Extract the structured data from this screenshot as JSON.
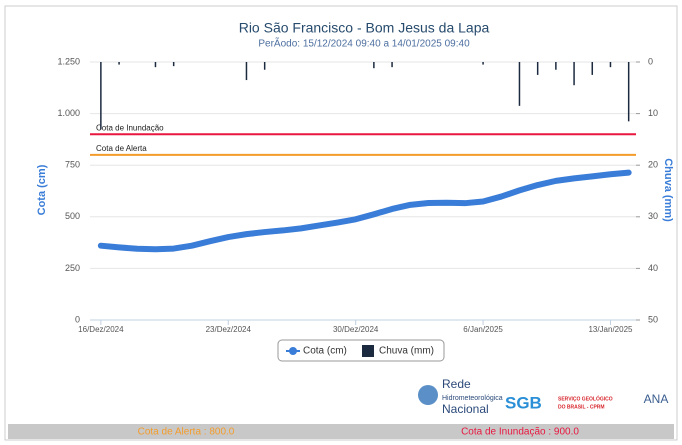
{
  "chart_data": {
    "type": "line",
    "title": "Rio São Francisco - Bom Jesus da Lapa",
    "subtitle": "PerÃodo: 15/12/2024 09:40 a 14/01/2025 09:40",
    "y_label": "Cota (cm)",
    "y2_label": "Chuva (mm)",
    "xlim": [
      "2024-12-15 09:40",
      "2025-01-14 09:40"
    ],
    "xticks": [
      {
        "value": "2024-12-16",
        "label": "16/Dez/2024"
      },
      {
        "value": "2024-12-23",
        "label": "23/Dez/2024"
      },
      {
        "value": "2024-12-30",
        "label": "30/Dez/2024"
      },
      {
        "value": "2025-01-06",
        "label": "6/Jan/2025"
      },
      {
        "value": "2025-01-13",
        "label": "13/Jan/2025"
      }
    ],
    "ylim": [
      0,
      1250
    ],
    "yticks": [
      0,
      250,
      500,
      750,
      {
        "value": 1000,
        "label": "1.000"
      },
      {
        "value": 1250,
        "label": "1.250"
      }
    ],
    "y2lim": [
      50,
      0
    ],
    "y2ticks": [
      0,
      10,
      20,
      30,
      40,
      50
    ],
    "grid": true,
    "series": [
      {
        "name": "Cota (cm)",
        "type": "line",
        "color": "#3a7dd8",
        "x": [
          "2024-12-16",
          "2024-12-17",
          "2024-12-18",
          "2024-12-19",
          "2024-12-20",
          "2024-12-21",
          "2024-12-22",
          "2024-12-23",
          "2024-12-24",
          "2024-12-25",
          "2024-12-26",
          "2024-12-27",
          "2024-12-28",
          "2024-12-29",
          "2024-12-30",
          "2024-12-31",
          "2025-01-01",
          "2025-01-02",
          "2025-01-03",
          "2025-01-04",
          "2025-01-05",
          "2025-01-06",
          "2025-01-07",
          "2025-01-08",
          "2025-01-09",
          "2025-01-10",
          "2025-01-11",
          "2025-01-12",
          "2025-01-13",
          "2025-01-14"
        ],
        "values": [
          360,
          352,
          345,
          343,
          346,
          360,
          382,
          402,
          416,
          426,
          434,
          444,
          458,
          472,
          488,
          512,
          538,
          558,
          567,
          568,
          566,
          574,
          598,
          628,
          654,
          674,
          686,
          696,
          706,
          714
        ]
      },
      {
        "name": "Chuva (mm)",
        "type": "bar",
        "axis": "y2",
        "color": "#1c2a40",
        "x": [
          "2024-12-16",
          "2024-12-17",
          "2024-12-19",
          "2024-12-20",
          "2024-12-24",
          "2024-12-25",
          "2024-12-31",
          "2025-01-01",
          "2025-01-06",
          "2025-01-08",
          "2025-01-09",
          "2025-01-10",
          "2025-01-11",
          "2025-01-12",
          "2025-01-13",
          "2025-01-14"
        ],
        "values": [
          13,
          0.5,
          1,
          0.8,
          3.5,
          1.5,
          1.2,
          1,
          0.5,
          8.5,
          2.5,
          1.5,
          4.5,
          2.5,
          1,
          11.5
        ]
      }
    ],
    "reference_lines": [
      {
        "label": "Cota de Inundação",
        "value": 900,
        "color": "#e8173f",
        "footer_label": "Cota de Inundação : 900.0"
      },
      {
        "label": "Cota de Alerta",
        "value": 800,
        "color": "#f39c2b",
        "footer_label": "Cota de Alerta : 800.0"
      }
    ],
    "logos": [
      "Rede",
      "Hidrometeorológica",
      "Nacional",
      "SGB",
      "SERVIÇO GEOLÓGICO",
      "DO BRASIL - CPRM",
      "ANA"
    ]
  }
}
